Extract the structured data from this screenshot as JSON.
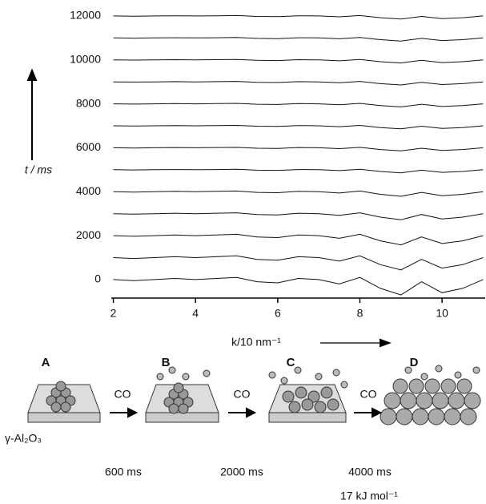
{
  "chart_data": {
    "type": "waterfall",
    "y_label": "t / ms",
    "x_label": "k/10 nm⁻¹",
    "color": "#111111",
    "xlim": [
      1.95,
      11.05
    ],
    "ylim": [
      -770,
      12180
    ],
    "xticks": [
      2,
      4,
      6,
      8,
      10
    ],
    "yticks": [
      0,
      2000,
      4000,
      6000,
      8000,
      10000,
      12000
    ],
    "x": [
      2,
      2.5,
      3,
      3.5,
      4,
      4.5,
      5,
      5.5,
      6,
      6.5,
      7,
      7.5,
      8,
      8.5,
      9,
      9.5,
      10,
      10.5,
      11
    ],
    "series": [
      {
        "values": [
          0,
          -50,
          0,
          50,
          0,
          50,
          100,
          -100,
          -150,
          50,
          0,
          -200,
          100,
          -400,
          -700,
          -100,
          -600,
          -400,
          0
        ]
      },
      {
        "values": [
          1000,
          960,
          1000,
          1040,
          1000,
          1040,
          1080,
          920,
          880,
          1040,
          1000,
          840,
          1080,
          680,
          440,
          920,
          520,
          680,
          1000
        ]
      },
      {
        "values": [
          2000,
          1970,
          2000,
          2030,
          2000,
          2030,
          2060,
          1940,
          1910,
          2030,
          2000,
          1880,
          2060,
          1760,
          1580,
          1940,
          1640,
          1760,
          2000
        ]
      },
      {
        "values": [
          3000,
          2980,
          3000,
          3020,
          3000,
          3020,
          3040,
          2960,
          2940,
          3020,
          3000,
          2920,
          3040,
          2840,
          2720,
          2960,
          2760,
          2840,
          3000
        ]
      },
      {
        "values": [
          4000,
          3985,
          4000,
          4015,
          4000,
          4015,
          4030,
          3970,
          3955,
          4015,
          4000,
          3940,
          4030,
          3880,
          3790,
          3970,
          3820,
          3880,
          4000
        ]
      },
      {
        "values": [
          5000,
          4990,
          5000,
          5010,
          5000,
          5010,
          5020,
          4980,
          4970,
          5010,
          5000,
          4960,
          5020,
          4920,
          4860,
          4980,
          4880,
          4920,
          5000
        ]
      },
      {
        "values": [
          6000,
          5990,
          6000,
          6010,
          6000,
          6010,
          6020,
          5980,
          5970,
          6010,
          6000,
          5960,
          6020,
          5920,
          5860,
          5980,
          5880,
          5920,
          6000
        ]
      },
      {
        "values": [
          7000,
          6990,
          7000,
          7010,
          7000,
          7010,
          7020,
          6980,
          6970,
          7010,
          7000,
          6960,
          7020,
          6920,
          6860,
          6980,
          6880,
          6920,
          7000
        ]
      },
      {
        "values": [
          8000,
          7990,
          8000,
          8010,
          8000,
          8010,
          8020,
          7980,
          7970,
          8010,
          8000,
          7960,
          8020,
          7920,
          7860,
          7980,
          7880,
          7920,
          8000
        ]
      },
      {
        "values": [
          9000,
          8990,
          9000,
          9010,
          9000,
          9010,
          9020,
          8980,
          8970,
          9010,
          9000,
          8960,
          9020,
          8920,
          8860,
          8980,
          8880,
          8920,
          9000
        ]
      },
      {
        "values": [
          10000,
          9990,
          10000,
          10010,
          10000,
          10010,
          10020,
          9980,
          9970,
          10010,
          10000,
          9960,
          10020,
          9920,
          9860,
          9980,
          9880,
          9920,
          10000
        ]
      },
      {
        "values": [
          11000,
          10990,
          11000,
          11010,
          11000,
          11010,
          11020,
          10980,
          10970,
          11010,
          11000,
          10960,
          11020,
          10920,
          10860,
          10980,
          10880,
          10920,
          11000
        ]
      },
      {
        "values": [
          12000,
          11990,
          12000,
          12010,
          12000,
          12010,
          12020,
          11980,
          11970,
          12010,
          12000,
          11960,
          12020,
          11920,
          11860,
          11980,
          11880,
          11920,
          12000
        ]
      }
    ]
  },
  "scheme": {
    "stages": [
      "A",
      "B",
      "C",
      "D"
    ],
    "reagent": [
      "CO",
      "CO",
      "CO"
    ],
    "times": [
      "600 ms",
      "2000 ms",
      "4000 ms"
    ],
    "support": "γ-Al₂O₃",
    "energy": "17 kJ mol⁻¹"
  }
}
